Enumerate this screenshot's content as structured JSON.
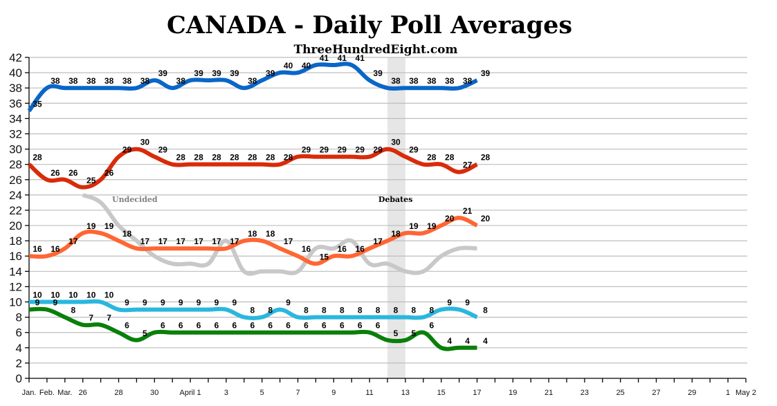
{
  "chart_data": {
    "type": "line",
    "title": "CANADA - Daily Poll Averages",
    "subtitle": "ThreeHundredEight.com",
    "xlabel": "",
    "ylabel": "",
    "ylim": [
      0,
      42
    ],
    "yticks": [
      0,
      2,
      4,
      6,
      8,
      10,
      12,
      14,
      16,
      18,
      20,
      22,
      24,
      26,
      28,
      30,
      32,
      34,
      36,
      38,
      40,
      42
    ],
    "grid": true,
    "x_positions": [
      "Jan.",
      "Feb.",
      "Mar.",
      "Mar 26",
      "Mar 27",
      "Mar 28",
      "Mar 29",
      "Mar 30",
      "Mar 31",
      "Apr 1",
      "Apr 2",
      "Apr 3",
      "Apr 4",
      "Apr 5",
      "Apr 6",
      "Apr 7",
      "Apr 8",
      "Apr 9",
      "Apr 10",
      "Apr 11",
      "Apr 12",
      "Apr 13",
      "Apr 14",
      "Apr 15",
      "Apr 16",
      "Apr 17",
      "Apr 18",
      "Apr 19",
      "Apr 20",
      "Apr 21",
      "Apr 22",
      "Apr 23",
      "Apr 24",
      "Apr 25",
      "Apr 26",
      "Apr 27",
      "Apr 28",
      "Apr 29",
      "Apr 30",
      "May 1",
      "May 2"
    ],
    "xtick_labels": [
      {
        "index": 0,
        "label": "Jan."
      },
      {
        "index": 1,
        "label": "Feb."
      },
      {
        "index": 2,
        "label": "Mar."
      },
      {
        "index": 3,
        "label": "26"
      },
      {
        "index": 5,
        "label": "28"
      },
      {
        "index": 7,
        "label": "30"
      },
      {
        "index": 9,
        "label": "April 1"
      },
      {
        "index": 11,
        "label": "3"
      },
      {
        "index": 13,
        "label": "5"
      },
      {
        "index": 15,
        "label": "7"
      },
      {
        "index": 17,
        "label": "9"
      },
      {
        "index": 19,
        "label": "11"
      },
      {
        "index": 21,
        "label": "13"
      },
      {
        "index": 23,
        "label": "15"
      },
      {
        "index": 25,
        "label": "17"
      },
      {
        "index": 27,
        "label": "19"
      },
      {
        "index": 29,
        "label": "21"
      },
      {
        "index": 31,
        "label": "23"
      },
      {
        "index": 33,
        "label": "25"
      },
      {
        "index": 35,
        "label": "27"
      },
      {
        "index": 37,
        "label": "29"
      },
      {
        "index": 39,
        "label": "1"
      },
      {
        "index": 40,
        "label": "May 2"
      }
    ],
    "series": [
      {
        "name": "Blue",
        "color": "#0a66c8",
        "start_index": 0,
        "labeled": true,
        "values": [
          35,
          38,
          38,
          38,
          38,
          38,
          38,
          39,
          38,
          39,
          39,
          39,
          38,
          39,
          40,
          40,
          41,
          41,
          41,
          39,
          38,
          38,
          38,
          38,
          38,
          39
        ]
      },
      {
        "name": "Red",
        "color": "#d92b0a",
        "start_index": 0,
        "labeled": true,
        "values": [
          28,
          26,
          26,
          25,
          26,
          29,
          30,
          29,
          28,
          28,
          28,
          28,
          28,
          28,
          28,
          29,
          29,
          29,
          29,
          29,
          30,
          29,
          28,
          28,
          27,
          28
        ]
      },
      {
        "name": "Undecided",
        "color": "#c8c8c8",
        "start_index": 3,
        "labeled": false,
        "values": [
          24,
          23,
          20,
          18,
          16,
          15,
          15,
          15,
          18,
          14,
          14,
          14,
          14,
          17,
          17,
          18,
          15,
          15,
          14,
          14,
          16,
          17,
          17
        ]
      },
      {
        "name": "Orange",
        "color": "#ff6633",
        "start_index": 0,
        "labeled": true,
        "values": [
          16,
          16,
          17,
          19,
          19,
          18,
          17,
          17,
          17,
          17,
          17,
          17,
          18,
          18,
          17,
          16,
          15,
          16,
          16,
          17,
          18,
          19,
          19,
          20,
          21,
          20
        ]
      },
      {
        "name": "Cyan",
        "color": "#2ab7de",
        "start_index": 0,
        "labeled": true,
        "values": [
          10,
          10,
          10,
          10,
          10,
          9,
          9,
          9,
          9,
          9,
          9,
          9,
          8,
          8,
          9,
          8,
          8,
          8,
          8,
          8,
          8,
          8,
          8,
          9,
          9,
          8
        ]
      },
      {
        "name": "Green",
        "color": "#0a7f0a",
        "start_index": 0,
        "labeled": true,
        "values": [
          9,
          9,
          8,
          7,
          7,
          6,
          5,
          6,
          6,
          6,
          6,
          6,
          6,
          6,
          6,
          6,
          6,
          6,
          6,
          6,
          5,
          5,
          6,
          4,
          4,
          4
        ]
      }
    ],
    "annotations": [
      {
        "text": "Undecided",
        "color": "#808080",
        "x_index": 5.9,
        "y": 23.1
      },
      {
        "text": "Debates",
        "color": "#000000",
        "x_index": 20.45,
        "y": 23.1
      }
    ],
    "shaded_band": {
      "label": "Debates",
      "from_index": 20,
      "to_index": 21,
      "color": "#e6e6e6"
    }
  }
}
